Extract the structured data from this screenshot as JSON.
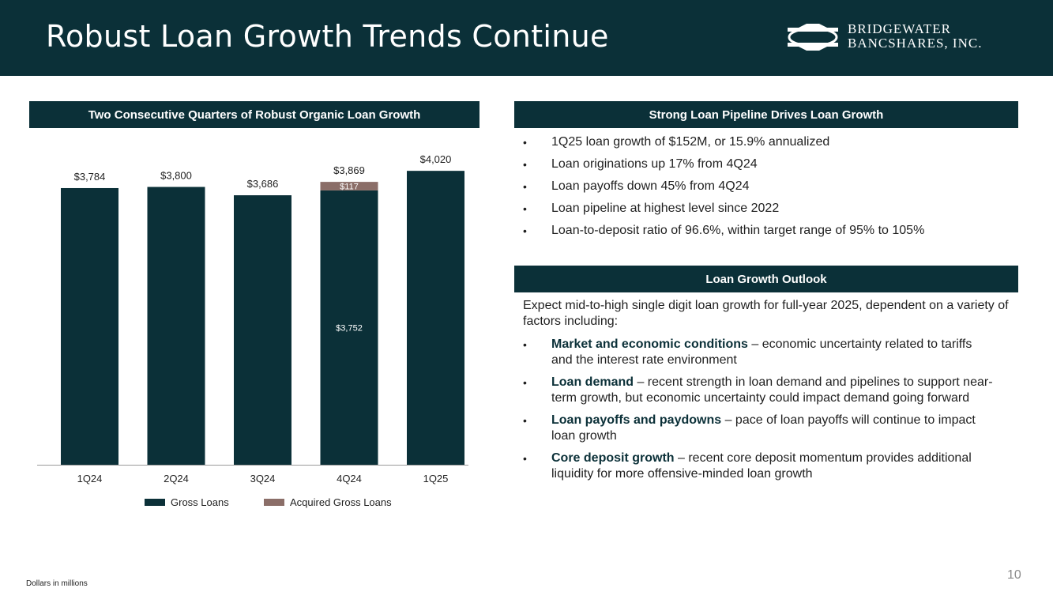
{
  "header": {
    "title": "Robust Loan Growth Trends Continue",
    "logo_line1": "BRIDGEWATER",
    "logo_line2": "BANCSHARES, INC."
  },
  "left_section": {
    "heading": "Two Consecutive Quarters of Robust Organic Loan Growth"
  },
  "chart_data": {
    "type": "bar",
    "stacked": true,
    "categories": [
      "1Q24",
      "2Q24",
      "3Q24",
      "4Q24",
      "1Q25"
    ],
    "series": [
      {
        "name": "Gross Loans",
        "color": "#0b3038",
        "values": [
          3784,
          3800,
          3686,
          3752,
          4020
        ]
      },
      {
        "name": "Acquired Gross Loans",
        "color": "#8b6e68",
        "values": [
          0,
          0,
          0,
          117,
          0
        ]
      }
    ],
    "total_labels": [
      "$3,784",
      "$3,800",
      "$3,686",
      "$3,869",
      "$4,020"
    ],
    "segment_labels": {
      "4Q24": {
        "Gross Loans": "$3,752",
        "Acquired Gross Loans": "$117"
      }
    },
    "legend": [
      "Gross Loans",
      "Acquired Gross Loans"
    ],
    "legend_position": "bottom",
    "ylim": [
      0,
      4200
    ],
    "title": "",
    "xlabel": "",
    "ylabel": ""
  },
  "right_top": {
    "heading": "Strong Loan Pipeline Drives Loan Growth",
    "bullets": [
      "1Q25 loan growth of $152M, or 15.9% annualized",
      "Loan originations up 17% from 4Q24",
      "Loan payoffs down 45% from 4Q24",
      "Loan pipeline at highest level since 2022",
      "Loan-to-deposit ratio of 96.6%, within target range of 95% to 105%"
    ]
  },
  "right_bottom": {
    "heading": "Loan Growth Outlook",
    "intro": "Expect mid-to-high single digit loan growth for full-year 2025, dependent on a variety of factors including:",
    "items": [
      {
        "key": "Market and economic conditions",
        "text": " – economic uncertainty related to tariffs and the interest rate environment"
      },
      {
        "key": "Loan demand",
        "text": " – recent strength in loan demand and pipelines to support near-term growth, but economic uncertainty could impact demand going forward"
      },
      {
        "key": "Loan payoffs and paydowns",
        "text": " – pace of loan payoffs will continue to impact loan growth"
      },
      {
        "key": "Core deposit growth",
        "text": " – recent core deposit momentum provides additional liquidity for more offensive-minded loan growth"
      }
    ]
  },
  "footer": {
    "note": "Dollars in millions",
    "page": "10"
  }
}
